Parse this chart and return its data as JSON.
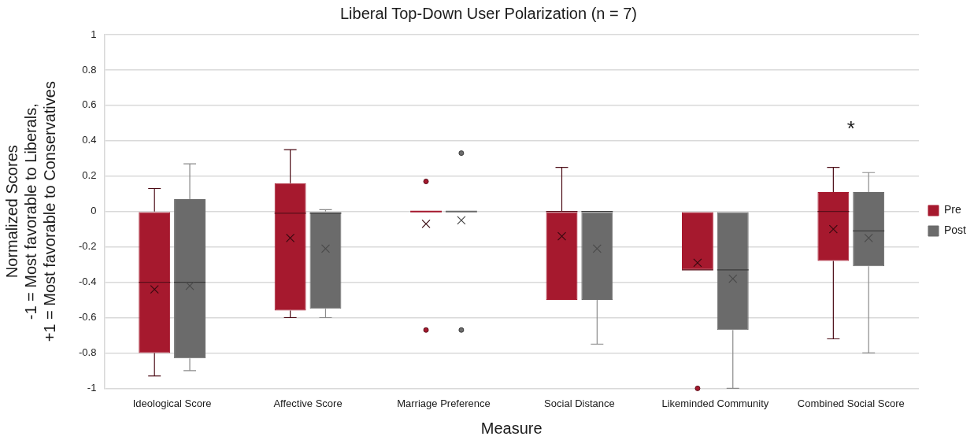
{
  "chart_data": {
    "type": "box",
    "title": "Liberal Top-Down User Polarization (n = 7)",
    "xlabel": "Measure",
    "ylabel": "Normalized Scores\n-1 = Most favorable to Liberals,\n+1 = Most favorable to Conservatives",
    "categories": [
      "Ideological Score",
      "Affective Score",
      "Marriage Preference",
      "Social Distance",
      "Likeminded Community",
      "Combined Social Score"
    ],
    "series": [
      {
        "name": "Pre",
        "color": "#a6192e",
        "boxes": [
          {
            "low": -0.93,
            "q1": -0.8,
            "median": -0.4,
            "q3": 0,
            "high": 0.13,
            "mean": -0.44
          },
          {
            "low": -0.6,
            "q1": -0.56,
            "median": -0.01,
            "q3": 0.16,
            "high": 0.35,
            "mean": -0.15
          },
          {
            "low": 0,
            "q1": 0,
            "median": 0,
            "q3": 0,
            "high": 0,
            "mean": -0.07,
            "outliers": [
              0.17,
              -0.67
            ]
          },
          {
            "low": -0.5,
            "q1": -0.5,
            "median": 0,
            "q3": 0,
            "high": 0.25,
            "mean": -0.14
          },
          {
            "low": -0.33,
            "q1": -0.33,
            "median": -0.33,
            "q3": 0,
            "high": 0,
            "mean": -0.29,
            "outliers": [
              -1
            ]
          },
          {
            "low": -0.72,
            "q1": -0.28,
            "median": 0,
            "q3": 0.11,
            "high": 0.25,
            "mean": -0.1
          }
        ]
      },
      {
        "name": "Post",
        "color": "#6b6b6b",
        "boxes": [
          {
            "low": -0.9,
            "q1": -0.83,
            "median": -0.4,
            "q3": 0.07,
            "high": 0.27,
            "mean": -0.42
          },
          {
            "low": -0.6,
            "q1": -0.55,
            "median": -0.01,
            "q3": 0,
            "high": 0.01,
            "mean": -0.21
          },
          {
            "low": 0,
            "q1": 0,
            "median": 0,
            "q3": 0,
            "high": 0,
            "mean": -0.05,
            "outliers": [
              0.33,
              -0.67
            ]
          },
          {
            "low": -0.75,
            "q1": -0.5,
            "median": 0,
            "q3": 0,
            "high": 0,
            "mean": -0.21
          },
          {
            "low": -1,
            "q1": -0.67,
            "median": -0.33,
            "q3": 0,
            "high": 0,
            "mean": -0.38
          },
          {
            "low": -0.8,
            "q1": -0.31,
            "median": -0.11,
            "q3": 0.11,
            "high": 0.22,
            "mean": -0.15
          }
        ]
      }
    ],
    "ylim": [
      -1,
      1
    ],
    "yticks": [
      -1,
      -0.8,
      -0.6,
      -0.4,
      -0.2,
      0,
      0.2,
      0.4,
      0.6,
      0.8,
      1
    ],
    "grid": "y",
    "legend": "right",
    "annotations": [
      "*"
    ]
  }
}
